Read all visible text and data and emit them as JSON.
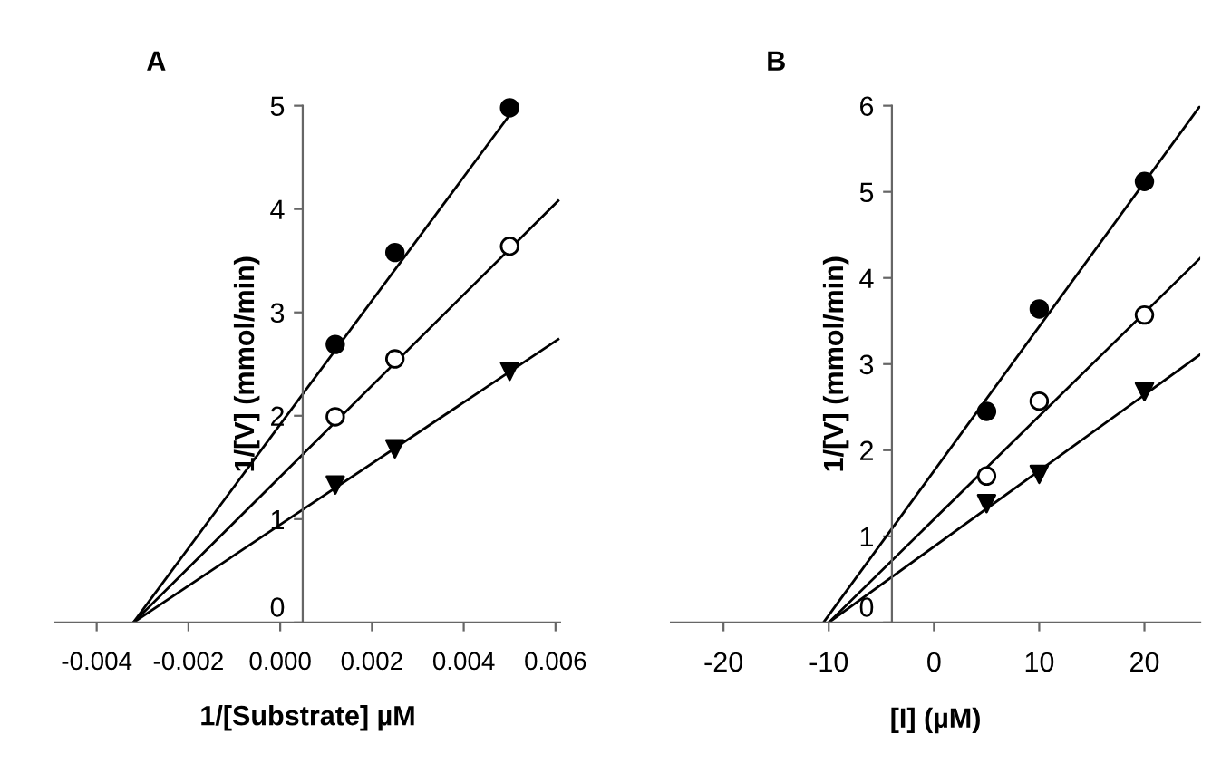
{
  "chart_data": [
    {
      "type": "scatter",
      "title": "A",
      "xlabel": "1/[Substrate] µM",
      "ylabel": "1/[V] (mmol/min)",
      "xlim": [
        -0.0049,
        0.0061
      ],
      "xticks": [
        {
          "value": -0.004,
          "label": "-0.004"
        },
        {
          "value": -0.002,
          "label": "-0.002"
        },
        {
          "value": 0.0,
          "label": "0.000"
        },
        {
          "value": 0.002,
          "label": "0.002"
        },
        {
          "value": 0.004,
          "label": "0.004"
        },
        {
          "value": 0.006,
          "label": "0.006"
        }
      ],
      "ylim": [
        0,
        5
      ],
      "yticks": [
        0,
        1,
        2,
        3,
        4,
        5
      ],
      "grid": false,
      "legend": false,
      "series": [
        {
          "color": "#000000",
          "marker": "circle",
          "x": [
            0.0012,
            0.0025,
            0.005
          ],
          "values": [
            2.69,
            3.58,
            4.98
          ]
        },
        {
          "color": "#ffffff",
          "marker": "circle",
          "x": [
            0.0012,
            0.0025,
            0.005
          ],
          "values": [
            1.99,
            2.55,
            3.64
          ]
        },
        {
          "color": "#000000",
          "marker": "triangle",
          "x": [
            0.0012,
            0.0025,
            0.005
          ],
          "values": [
            1.33,
            1.68,
            2.43
          ]
        },
        {
          "type": "line",
          "color": "#000000",
          "x": [
            -0.0032,
            0.00515
          ],
          "values": [
            0,
            5.0
          ]
        },
        {
          "type": "line",
          "color": "#000000",
          "x": [
            -0.0032,
            0.00606
          ],
          "values": [
            0,
            4.08
          ]
        },
        {
          "type": "line",
          "color": "#000000",
          "x": [
            -0.0032,
            0.00606
          ],
          "values": [
            0,
            2.74
          ]
        }
      ]
    },
    {
      "type": "scatter",
      "title": "B",
      "xlabel": "[I] (µM)",
      "ylabel": "1/[V] (mmol/min)",
      "xlim": [
        -25,
        25.3
      ],
      "xticks": [
        -20,
        -10,
        0,
        10,
        20
      ],
      "ylim": [
        0,
        6
      ],
      "yticks": [
        0,
        1,
        2,
        3,
        4,
        5,
        6
      ],
      "grid": false,
      "legend": false,
      "series": [
        {
          "color": "#000000",
          "marker": "circle",
          "x": [
            5,
            10,
            20
          ],
          "values": [
            2.45,
            3.64,
            5.12
          ]
        },
        {
          "color": "#ffffff",
          "marker": "circle",
          "x": [
            5,
            10,
            20
          ],
          "values": [
            1.7,
            2.57,
            3.57
          ]
        },
        {
          "color": "#000000",
          "marker": "triangle",
          "x": [
            5,
            10,
            20
          ],
          "values": [
            1.38,
            1.72,
            2.68
          ]
        },
        {
          "type": "line",
          "color": "#000000",
          "x": [
            -10.5,
            25.3
          ],
          "values": [
            0,
            6.0
          ]
        },
        {
          "type": "line",
          "color": "#000000",
          "x": [
            -10,
            25.3
          ],
          "values": [
            0,
            4.23
          ]
        },
        {
          "type": "line",
          "color": "#000000",
          "x": [
            -10,
            25.3
          ],
          "values": [
            0,
            3.11
          ]
        }
      ]
    }
  ]
}
